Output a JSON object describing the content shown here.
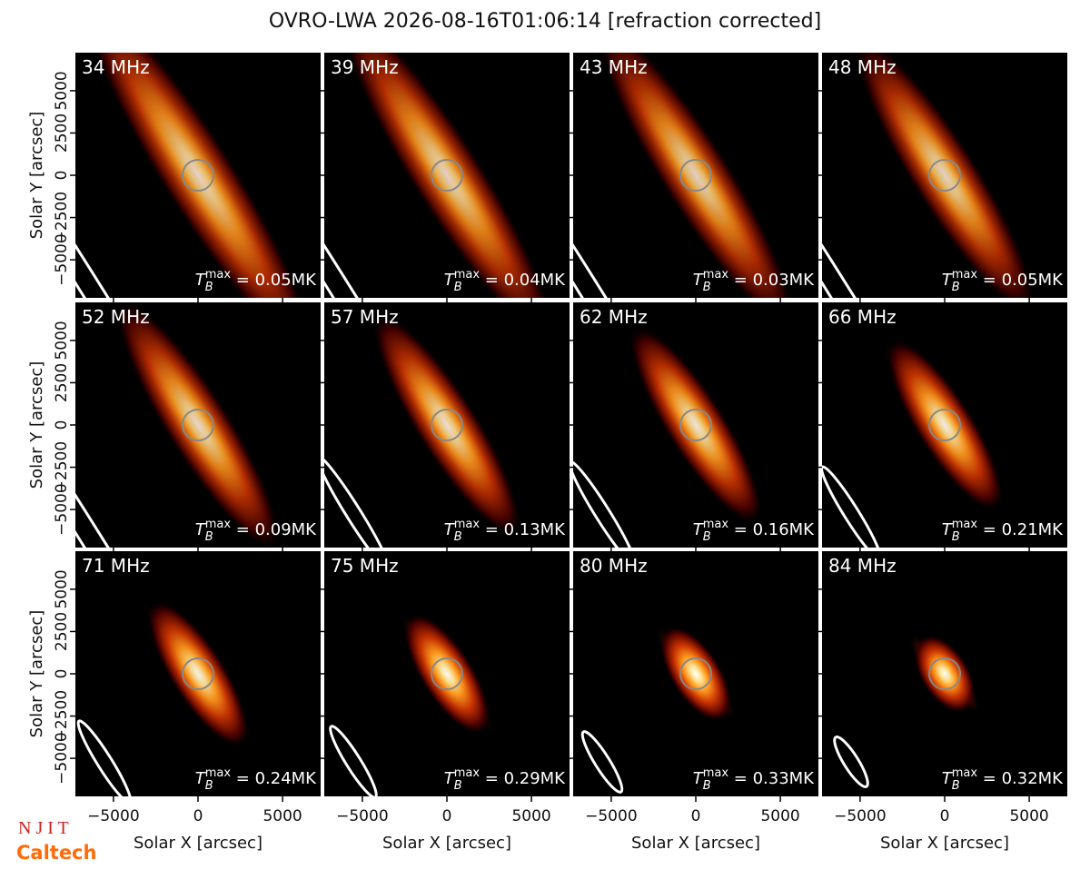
{
  "chart_data": {
    "type": "image",
    "title": "OVRO-LWA 2026-08-16T01:06:14 [refraction corrected]",
    "xlabel": "Solar X [arcsec]",
    "ylabel": "Solar Y [arcsec]",
    "xlim": [
      -7250,
      7250
    ],
    "ylim": [
      -7250,
      7250
    ],
    "xticks": [
      {
        "value": -5000,
        "label": "−5000"
      },
      0,
      5000
    ],
    "yticks": [
      {
        "value": -5000,
        "label": "−5000"
      },
      {
        "value": -2500,
        "label": "−2500"
      },
      0,
      2500,
      5000
    ],
    "tb_symbol": "T",
    "tb_sub": "B",
    "tb_sup": "max",
    "tb_eq": " = ",
    "panels": [
      {
        "label": "34 MHz",
        "tb_max": 0.05,
        "tb_max_label": "0.05MK"
      },
      {
        "label": "39 MHz",
        "tb_max": 0.04,
        "tb_max_label": "0.04MK"
      },
      {
        "label": "43 MHz",
        "tb_max": 0.03,
        "tb_max_label": "0.03MK"
      },
      {
        "label": "48 MHz",
        "tb_max": 0.05,
        "tb_max_label": "0.05MK"
      },
      {
        "label": "52 MHz",
        "tb_max": 0.09,
        "tb_max_label": "0.09MK"
      },
      {
        "label": "57 MHz",
        "tb_max": 0.13,
        "tb_max_label": "0.13MK"
      },
      {
        "label": "62 MHz",
        "tb_max": 0.16,
        "tb_max_label": "0.16MK"
      },
      {
        "label": "66 MHz",
        "tb_max": 0.21,
        "tb_max_label": "0.21MK"
      },
      {
        "label": "71 MHz",
        "tb_max": 0.24,
        "tb_max_label": "0.24MK"
      },
      {
        "label": "75 MHz",
        "tb_max": 0.29,
        "tb_max_label": "0.29MK"
      },
      {
        "label": "80 MHz",
        "tb_max": 0.33,
        "tb_max_label": "0.33MK"
      },
      {
        "label": "84 MHz",
        "tb_max": 0.32,
        "tb_max_label": "0.32MK"
      }
    ],
    "logos": [
      "N J I T",
      "Caltech"
    ]
  }
}
